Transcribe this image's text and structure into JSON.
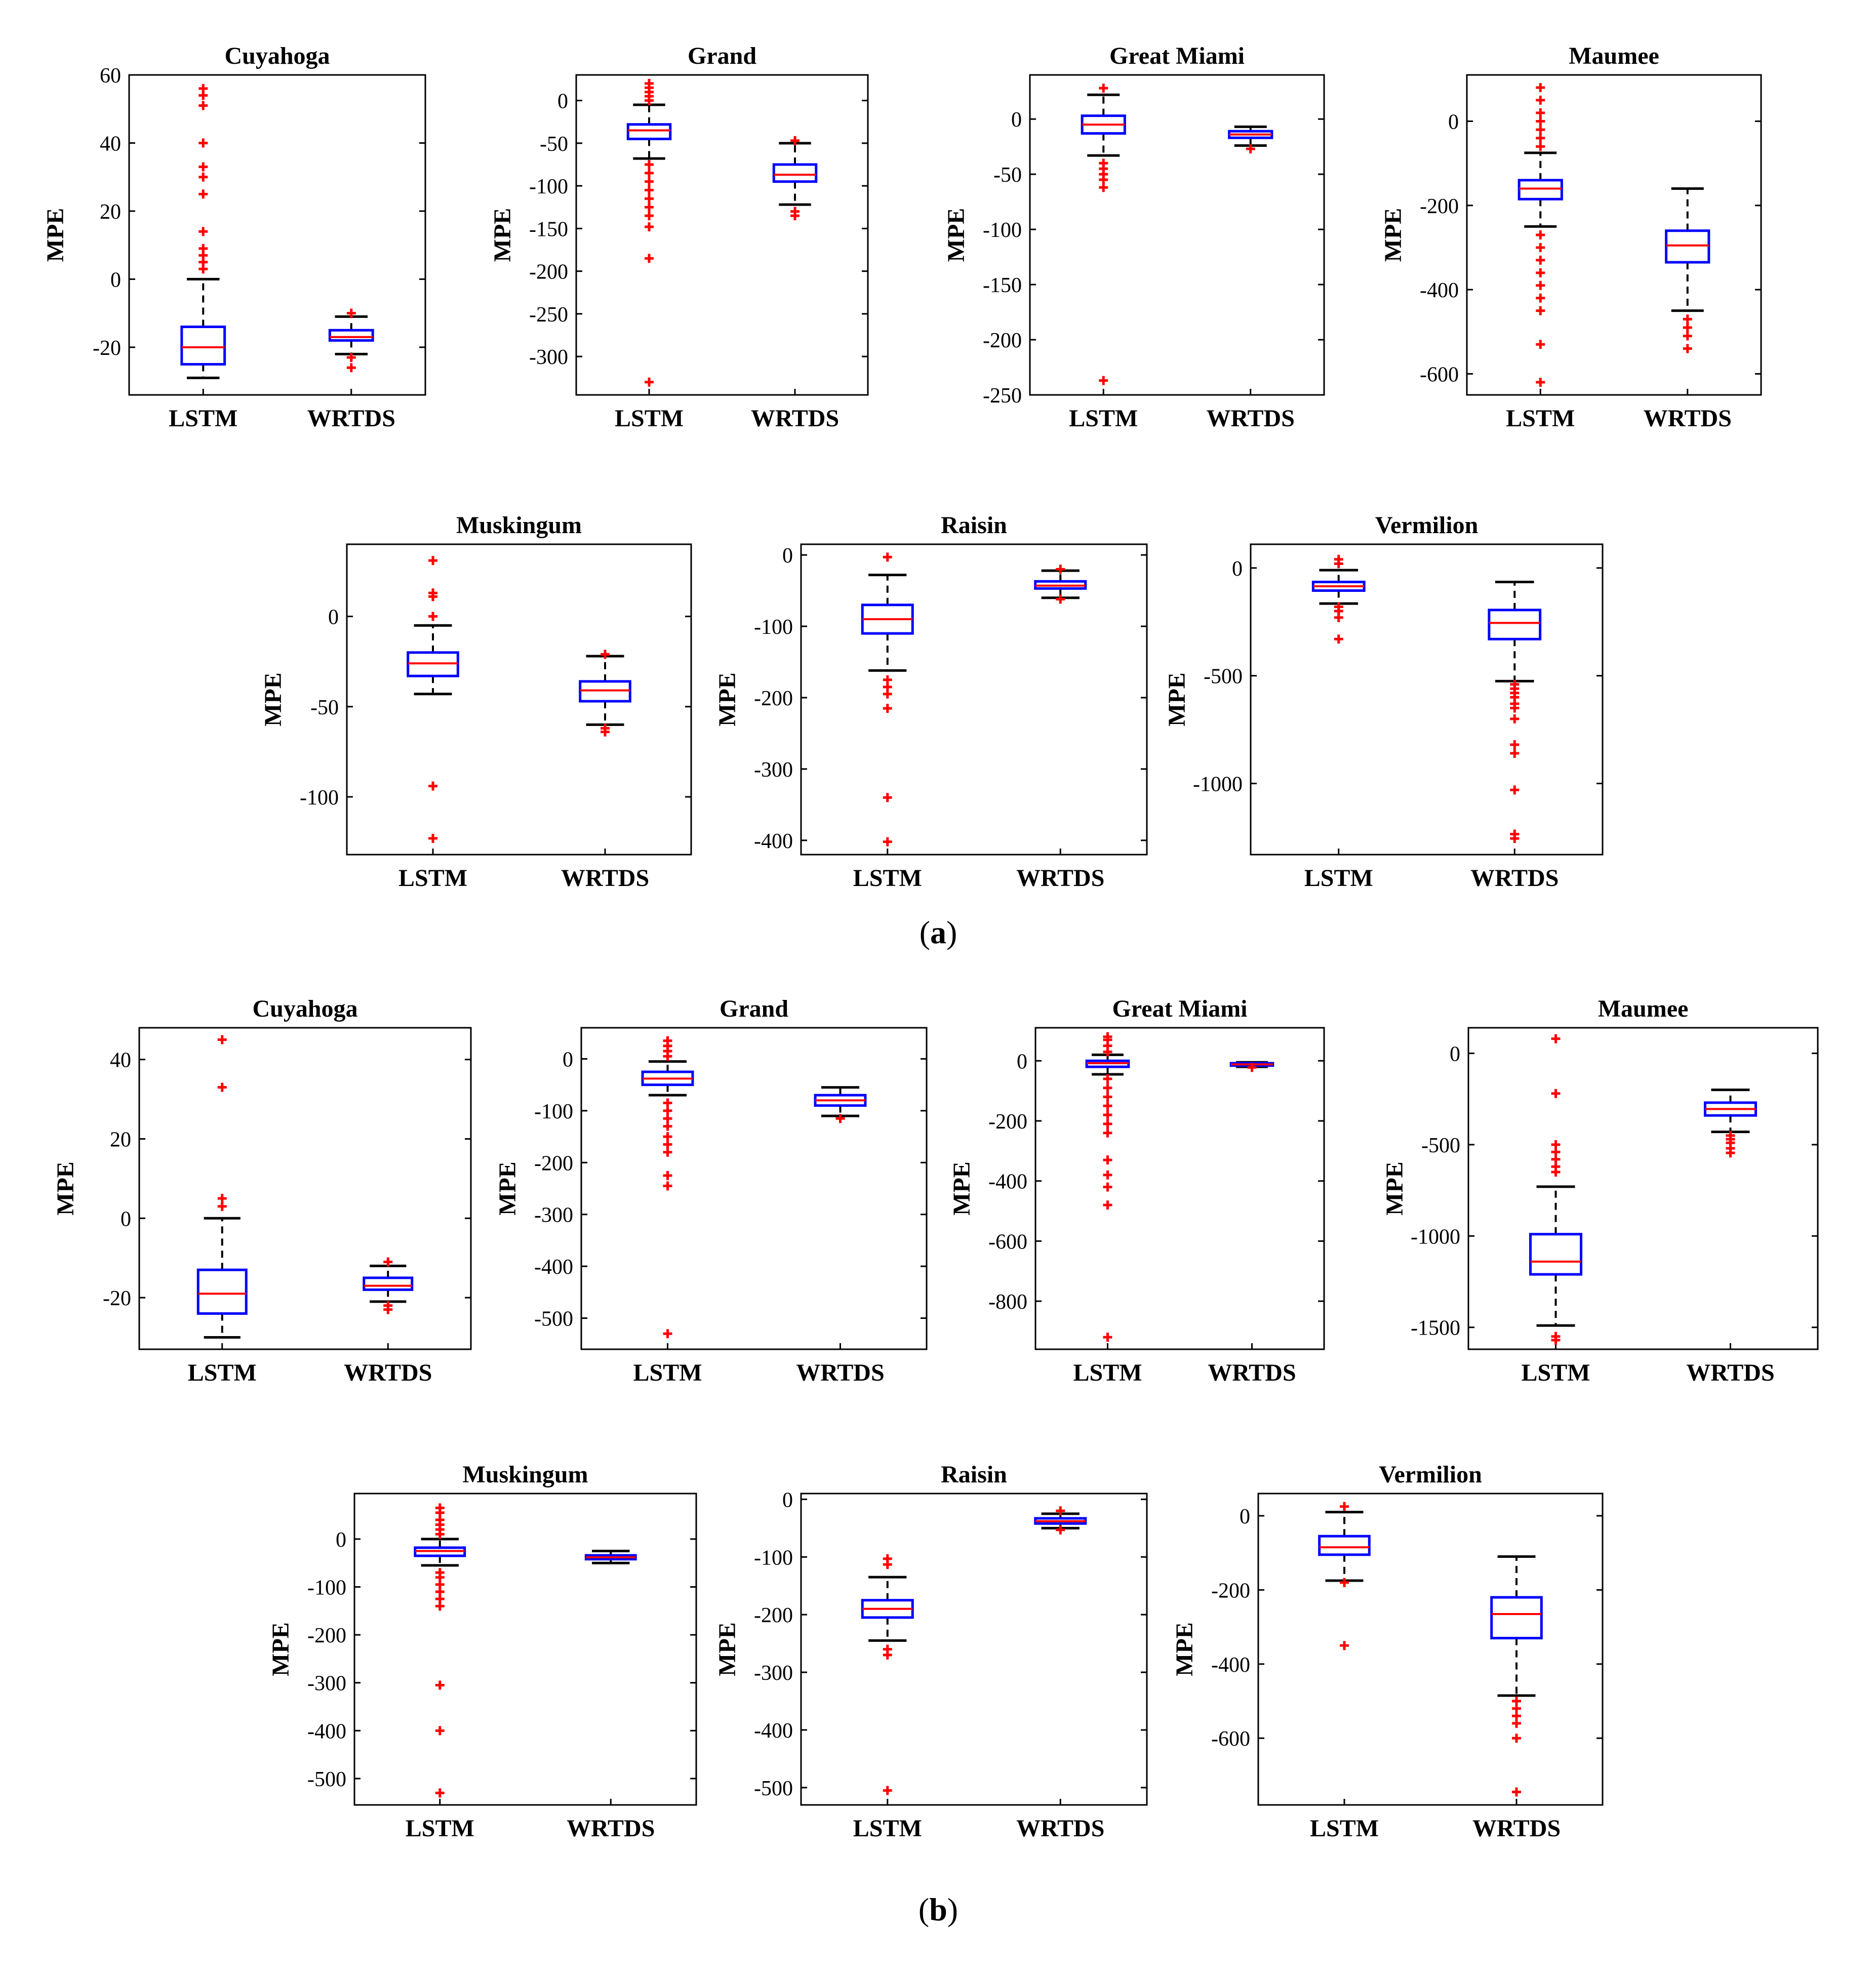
{
  "figure": {
    "panel_labels": [
      {
        "open": "(",
        "letter": "a",
        "close": ")"
      },
      {
        "open": "(",
        "letter": "b",
        "close": ")"
      }
    ],
    "colors": {
      "box": "#0000ff",
      "median": "#ff0000",
      "whisker": "#000000",
      "outlier": "#ff0000",
      "axes": "#000000"
    }
  },
  "chart_data": [
    {
      "panel": "a",
      "type": "boxplot",
      "title": "Cuyahoga",
      "ylabel": "MPE",
      "categories": [
        "LSTM",
        "WRTDS"
      ],
      "ylim": [
        -34,
        60
      ],
      "yticks": [
        -20,
        0,
        20,
        40,
        60
      ],
      "boxes": [
        {
          "q1": -25,
          "median": -20,
          "q3": -14,
          "whisker_low": -29,
          "whisker_high": 0,
          "outliers": [
            3,
            5,
            7,
            9,
            14,
            25,
            30,
            33,
            40,
            51,
            54,
            56
          ]
        },
        {
          "q1": -18,
          "median": -17,
          "q3": -15,
          "whisker_low": -22,
          "whisker_high": -11,
          "outliers": [
            -10,
            -23,
            -26
          ]
        }
      ]
    },
    {
      "panel": "a",
      "type": "boxplot",
      "title": "Grand",
      "ylabel": "MPE",
      "categories": [
        "LSTM",
        "WRTDS"
      ],
      "ylim": [
        -345,
        30
      ],
      "yticks": [
        -300,
        -250,
        -200,
        -150,
        -100,
        -50,
        0
      ],
      "boxes": [
        {
          "q1": -45,
          "median": -35,
          "q3": -28,
          "whisker_low": -68,
          "whisker_high": -5,
          "outliers": [
            0,
            5,
            10,
            15,
            20,
            -75,
            -85,
            -95,
            -105,
            -115,
            -125,
            -135,
            -148,
            -185,
            -330
          ]
        },
        {
          "q1": -95,
          "median": -87,
          "q3": -75,
          "whisker_low": -122,
          "whisker_high": -50,
          "outliers": [
            -47,
            -130,
            -135
          ]
        }
      ]
    },
    {
      "panel": "a",
      "type": "boxplot",
      "title": "Great Miami",
      "ylabel": "MPE",
      "categories": [
        "LSTM",
        "WRTDS"
      ],
      "ylim": [
        -250,
        40
      ],
      "yticks": [
        -250,
        -200,
        -150,
        -100,
        -50,
        0
      ],
      "boxes": [
        {
          "q1": -13,
          "median": -5,
          "q3": 3,
          "whisker_low": -33,
          "whisker_high": 22,
          "outliers": [
            28,
            -40,
            -45,
            -50,
            -55,
            -62,
            -237
          ]
        },
        {
          "q1": -17,
          "median": -14,
          "q3": -11,
          "whisker_low": -24,
          "whisker_high": -7,
          "outliers": [
            -27
          ]
        }
      ]
    },
    {
      "panel": "a",
      "type": "boxplot",
      "title": "Maumee",
      "ylabel": "MPE",
      "categories": [
        "LSTM",
        "WRTDS"
      ],
      "ylim": [
        -650,
        110
      ],
      "yticks": [
        -600,
        -400,
        -200,
        0
      ],
      "boxes": [
        {
          "q1": -185,
          "median": -160,
          "q3": -140,
          "whisker_low": -250,
          "whisker_high": -75,
          "outliers": [
            -60,
            -40,
            -20,
            0,
            20,
            50,
            80,
            -270,
            -300,
            -330,
            -360,
            -390,
            -420,
            -450,
            -530,
            -620
          ]
        },
        {
          "q1": -335,
          "median": -295,
          "q3": -260,
          "whisker_low": -450,
          "whisker_high": -160,
          "outliers": [
            -470,
            -490,
            -510,
            -540
          ]
        }
      ]
    },
    {
      "panel": "a",
      "type": "boxplot",
      "title": "Muskingum",
      "ylabel": "MPE",
      "categories": [
        "LSTM",
        "WRTDS"
      ],
      "ylim": [
        -132,
        40
      ],
      "yticks": [
        -100,
        -50,
        0
      ],
      "boxes": [
        {
          "q1": -33,
          "median": -26,
          "q3": -20,
          "whisker_low": -43,
          "whisker_high": -5,
          "outliers": [
            0,
            11,
            13,
            31,
            -94,
            -123
          ]
        },
        {
          "q1": -47,
          "median": -41,
          "q3": -36,
          "whisker_low": -60,
          "whisker_high": -22,
          "outliers": [
            -21,
            -62,
            -64
          ]
        }
      ]
    },
    {
      "panel": "a",
      "type": "boxplot",
      "title": "Raisin",
      "ylabel": "MPE",
      "categories": [
        "LSTM",
        "WRTDS"
      ],
      "ylim": [
        -420,
        15
      ],
      "yticks": [
        -400,
        -300,
        -200,
        -100,
        0
      ],
      "boxes": [
        {
          "q1": -110,
          "median": -90,
          "q3": -70,
          "whisker_low": -162,
          "whisker_high": -28,
          "outliers": [
            -3,
            -175,
            -185,
            -195,
            -215,
            -340,
            -402
          ]
        },
        {
          "q1": -47,
          "median": -43,
          "q3": -37,
          "whisker_low": -60,
          "whisker_high": -22,
          "outliers": [
            -20,
            -62
          ]
        }
      ]
    },
    {
      "panel": "a",
      "type": "boxplot",
      "title": "Vermilion",
      "ylabel": "MPE",
      "categories": [
        "LSTM",
        "WRTDS"
      ],
      "ylim": [
        -1330,
        110
      ],
      "yticks": [
        -1000,
        -500,
        0
      ],
      "boxes": [
        {
          "q1": -105,
          "median": -85,
          "q3": -65,
          "whisker_low": -165,
          "whisker_high": -10,
          "outliers": [
            40,
            20,
            -180,
            -200,
            -230,
            -330
          ]
        },
        {
          "q1": -330,
          "median": -255,
          "q3": -195,
          "whisker_low": -525,
          "whisker_high": -65,
          "outliers": [
            -540,
            -560,
            -580,
            -600,
            -630,
            -650,
            -700,
            -820,
            -860,
            -1030,
            -1235,
            -1255
          ]
        }
      ]
    },
    {
      "panel": "b",
      "type": "boxplot",
      "title": "Cuyahoga",
      "ylabel": "MPE",
      "categories": [
        "LSTM",
        "WRTDS"
      ],
      "ylim": [
        -33,
        48
      ],
      "yticks": [
        -20,
        0,
        20,
        40
      ],
      "boxes": [
        {
          "q1": -24,
          "median": -19,
          "q3": -13,
          "whisker_low": -30,
          "whisker_high": 0,
          "outliers": [
            3,
            5,
            33,
            45
          ]
        },
        {
          "q1": -18,
          "median": -17,
          "q3": -15,
          "whisker_low": -21,
          "whisker_high": -12,
          "outliers": [
            -11,
            -22,
            -23
          ]
        }
      ]
    },
    {
      "panel": "b",
      "type": "boxplot",
      "title": "Grand",
      "ylabel": "MPE",
      "categories": [
        "LSTM",
        "WRTDS"
      ],
      "ylim": [
        -560,
        60
      ],
      "yticks": [
        -500,
        -400,
        -300,
        -200,
        -100,
        0
      ],
      "boxes": [
        {
          "q1": -50,
          "median": -38,
          "q3": -25,
          "whisker_low": -70,
          "whisker_high": -5,
          "outliers": [
            5,
            15,
            25,
            35,
            -85,
            -100,
            -115,
            -130,
            -150,
            -165,
            -180,
            -225,
            -245,
            -530
          ]
        },
        {
          "q1": -90,
          "median": -80,
          "q3": -70,
          "whisker_low": -110,
          "whisker_high": -55,
          "outliers": [
            -115
          ]
        }
      ]
    },
    {
      "panel": "b",
      "type": "boxplot",
      "title": "Great Miami",
      "ylabel": "MPE",
      "categories": [
        "LSTM",
        "WRTDS"
      ],
      "ylim": [
        -960,
        110
      ],
      "yticks": [
        -800,
        -600,
        -400,
        -200,
        0
      ],
      "boxes": [
        {
          "q1": -20,
          "median": -8,
          "q3": 0,
          "whisker_low": -45,
          "whisker_high": 20,
          "outliers": [
            30,
            50,
            70,
            80,
            -60,
            -90,
            -120,
            -150,
            -180,
            -210,
            -240,
            -330,
            -380,
            -420,
            -480,
            -920
          ]
        },
        {
          "q1": -16,
          "median": -12,
          "q3": -8,
          "whisker_low": -20,
          "whisker_high": -5,
          "outliers": [
            -22
          ]
        }
      ]
    },
    {
      "panel": "b",
      "type": "boxplot",
      "title": "Maumee",
      "ylabel": "MPE",
      "categories": [
        "LSTM",
        "WRTDS"
      ],
      "ylim": [
        -1620,
        140
      ],
      "yticks": [
        -1500,
        -1000,
        -500,
        0
      ],
      "boxes": [
        {
          "q1": -1210,
          "median": -1140,
          "q3": -990,
          "whisker_low": -1490,
          "whisker_high": -730,
          "outliers": [
            80,
            -220,
            -500,
            -540,
            -580,
            -620,
            -650,
            -1550,
            -1570
          ]
        },
        {
          "q1": -340,
          "median": -305,
          "q3": -270,
          "whisker_low": -430,
          "whisker_high": -200,
          "outliers": [
            -450,
            -470,
            -490,
            -520,
            -545
          ]
        }
      ]
    },
    {
      "panel": "b",
      "type": "boxplot",
      "title": "Muskingum",
      "ylabel": "MPE",
      "categories": [
        "LSTM",
        "WRTDS"
      ],
      "ylim": [
        -555,
        95
      ],
      "yticks": [
        -500,
        -400,
        -300,
        -200,
        -100,
        0
      ],
      "boxes": [
        {
          "q1": -35,
          "median": -25,
          "q3": -18,
          "whisker_low": -55,
          "whisker_high": 0,
          "outliers": [
            10,
            20,
            30,
            40,
            55,
            65,
            -70,
            -80,
            -95,
            -110,
            -125,
            -140,
            -305,
            -400,
            -530
          ]
        },
        {
          "q1": -42,
          "median": -38,
          "q3": -34,
          "whisker_low": -50,
          "whisker_high": -25,
          "outliers": []
        }
      ]
    },
    {
      "panel": "b",
      "type": "boxplot",
      "title": "Raisin",
      "ylabel": "MPE",
      "categories": [
        "LSTM",
        "WRTDS"
      ],
      "ylim": [
        -530,
        10
      ],
      "yticks": [
        -500,
        -400,
        -300,
        -200,
        -100,
        0
      ],
      "boxes": [
        {
          "q1": -205,
          "median": -190,
          "q3": -175,
          "whisker_low": -245,
          "whisker_high": -135,
          "outliers": [
            -103,
            -113,
            -260,
            -270,
            -505
          ]
        },
        {
          "q1": -42,
          "median": -38,
          "q3": -33,
          "whisker_low": -50,
          "whisker_high": -25,
          "outliers": [
            -20,
            -53
          ]
        }
      ]
    },
    {
      "panel": "b",
      "type": "boxplot",
      "title": "Vermilion",
      "ylabel": "MPE",
      "categories": [
        "LSTM",
        "WRTDS"
      ],
      "ylim": [
        -780,
        60
      ],
      "yticks": [
        -600,
        -400,
        -200,
        0
      ],
      "boxes": [
        {
          "q1": -105,
          "median": -85,
          "q3": -55,
          "whisker_low": -175,
          "whisker_high": 10,
          "outliers": [
            25,
            -180,
            -350
          ]
        },
        {
          "q1": -330,
          "median": -265,
          "q3": -220,
          "whisker_low": -485,
          "whisker_high": -110,
          "outliers": [
            -500,
            -520,
            -540,
            -560,
            -600,
            -745
          ]
        }
      ]
    }
  ]
}
